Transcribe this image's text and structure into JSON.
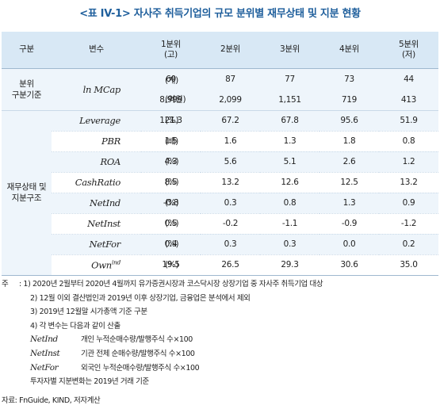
{
  "title": "<표 IV-1> 자사주 취득기업의 규모 분위별 재무상태 및 지분 현황",
  "header": {
    "group": "구분",
    "variable": "변수",
    "q1": "1분위",
    "q1_sub": "(고)",
    "q2": "2분위",
    "q3": "3분위",
    "q4": "4분위",
    "q5": "5분위",
    "q5_sub": "(저)"
  },
  "group1": {
    "label_line1": "분위",
    "label_line2": "구분기준"
  },
  "group2": {
    "label_line1": "재무상태 및",
    "label_line2": "지분구조"
  },
  "rows": [
    {
      "symbol": "ln MCap",
      "unit": "(개)",
      "values": [
        "60",
        "87",
        "77",
        "73",
        "44"
      ]
    },
    {
      "symbol": "",
      "unit": "(억원)",
      "values": [
        "8,999",
        "2,099",
        "1,151",
        "719",
        "413"
      ]
    },
    {
      "symbol": "Leverage",
      "unit": "(%)",
      "values": [
        "121.3",
        "67.2",
        "67.8",
        "95.6",
        "51.9"
      ]
    },
    {
      "symbol": "PBR",
      "unit": "(배)",
      "values": [
        "1.5",
        "1.6",
        "1.3",
        "1.8",
        "0.8"
      ]
    },
    {
      "symbol": "ROA",
      "unit": "(%)",
      "values": [
        "4.3",
        "5.6",
        "5.1",
        "2.6",
        "1.2"
      ]
    },
    {
      "symbol": "CashRatio",
      "unit": "(%)",
      "values": [
        "8.5",
        "13.2",
        "12.6",
        "12.5",
        "13.2"
      ]
    },
    {
      "symbol": "NetInd",
      "unit": "(%)",
      "values": [
        "-0.8",
        "0.3",
        "0.8",
        "1.3",
        "0.9"
      ]
    },
    {
      "symbol": "NetInst",
      "unit": "(%)",
      "values": [
        "0.5",
        "-0.2",
        "-1.1",
        "-0.9",
        "-1.2"
      ]
    },
    {
      "symbol": "NetFor",
      "unit": "(%)",
      "values": [
        "0.4",
        "0.3",
        "0.3",
        "0.0",
        "0.2"
      ]
    },
    {
      "symbol": "Own",
      "symbol_sup": "ind",
      "unit": "(%)",
      "values": [
        "19.5",
        "26.5",
        "29.3",
        "30.6",
        "35.0"
      ]
    }
  ],
  "notes": {
    "label": "주",
    "n1": ": 1) 2020년 2월부터 2020년 4월까지 유가증권시장과 코스닥시장 상장기업 중 자사주 취득기업 대상",
    "n2": "2) 12월 이외 결산법인과 2019년 이후 상장기업, 금융업은 분석에서 제외",
    "n3": "3) 2019년 12월말 시가총액 기준 구분",
    "n4": "4) 각 변수는 다음과 같이 산출",
    "d1_sym": "NetInd",
    "d1_txt": "개인 누적순매수량/발행주식 수×100",
    "d2_sym": "NetInst",
    "d2_txt": "기관 전체 순매수량/발행주식 수×100",
    "d3_sym": "NetFor",
    "d3_txt": "외국인 누적순매수량/발행주식 수×100",
    "n5": "투자자별 지분변화는 2019년 거래 기준"
  },
  "source": "자료: FnGuide, KIND, 저자계산"
}
